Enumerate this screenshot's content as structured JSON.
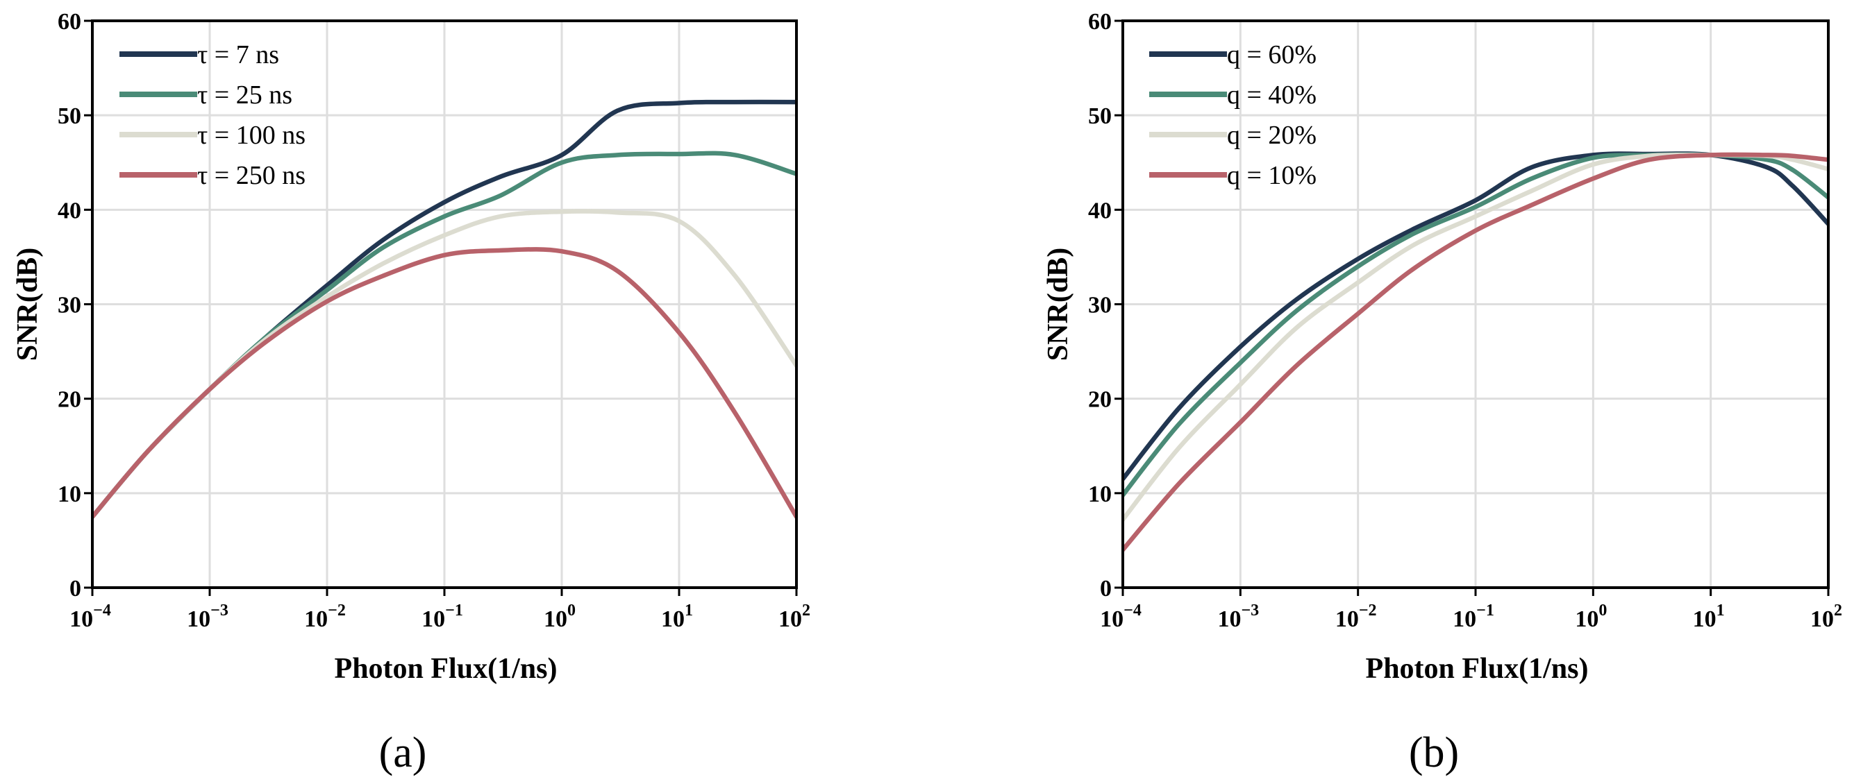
{
  "colors": {
    "navy": "#213651",
    "teal": "#4a8b77",
    "beige": "#dcdcd0",
    "red": "#b8626a"
  },
  "chart_data": [
    {
      "id": "a",
      "type": "line",
      "caption": "(a)",
      "xlabel": "Photon Flux(1/ns)",
      "ylabel": "SNR(dB)",
      "xscale": "log",
      "xlim": [
        0.0001,
        100
      ],
      "ylim": [
        0,
        60
      ],
      "grid": true,
      "legend": "top-left",
      "x_ticks": [
        {
          "base": "10",
          "exp": "−4"
        },
        {
          "base": "10",
          "exp": "−3"
        },
        {
          "base": "10",
          "exp": "−2"
        },
        {
          "base": "10",
          "exp": "−1"
        },
        {
          "base": "10",
          "exp": "0"
        },
        {
          "base": "10",
          "exp": "1"
        },
        {
          "base": "10",
          "exp": "2"
        }
      ],
      "y_ticks": [
        "0",
        "10",
        "20",
        "30",
        "40",
        "50",
        "60"
      ],
      "x": [
        0.0001,
        0.0003,
        0.001,
        0.003,
        0.01,
        0.03,
        0.1,
        0.3,
        1,
        3,
        10,
        30,
        100
      ],
      "series": [
        {
          "name": "τ = 7 ns",
          "color": "#213651",
          "values": [
            7.5,
            14.5,
            21.0,
            26.5,
            32.0,
            36.8,
            40.8,
            43.5,
            45.8,
            50.5,
            51.3,
            51.4,
            51.4
          ]
        },
        {
          "name": "τ = 25 ns",
          "color": "#4a8b77",
          "values": [
            7.5,
            14.5,
            21.0,
            26.5,
            31.5,
            36.0,
            39.3,
            41.5,
            45.0,
            45.8,
            45.9,
            45.8,
            43.8
          ]
        },
        {
          "name": "τ = 100 ns",
          "color": "#dcdcd0",
          "values": [
            7.5,
            14.5,
            21.0,
            26.3,
            30.8,
            34.3,
            37.3,
            39.3,
            39.8,
            39.7,
            38.8,
            33.0,
            23.5
          ]
        },
        {
          "name": "τ = 250 ns",
          "color": "#b8626a",
          "values": [
            7.5,
            14.5,
            21.0,
            26.0,
            30.3,
            33.0,
            35.2,
            35.7,
            35.6,
            33.5,
            27.0,
            18.5,
            7.5
          ]
        }
      ]
    },
    {
      "id": "b",
      "type": "line",
      "caption": "(b)",
      "xlabel": "Photon Flux(1/ns)",
      "ylabel": "SNR(dB)",
      "xscale": "log",
      "xlim": [
        0.0001,
        100
      ],
      "ylim": [
        0,
        60
      ],
      "grid": true,
      "legend": "top-left",
      "x_ticks": [
        {
          "base": "10",
          "exp": "−4"
        },
        {
          "base": "10",
          "exp": "−3"
        },
        {
          "base": "10",
          "exp": "−2"
        },
        {
          "base": "10",
          "exp": "−1"
        },
        {
          "base": "10",
          "exp": "0"
        },
        {
          "base": "10",
          "exp": "1"
        },
        {
          "base": "10",
          "exp": "2"
        }
      ],
      "y_ticks": [
        "0",
        "10",
        "20",
        "30",
        "40",
        "50",
        "60"
      ],
      "x": [
        0.0001,
        0.0003,
        0.001,
        0.003,
        0.01,
        0.03,
        0.1,
        0.3,
        1,
        3,
        10,
        30,
        50,
        100
      ],
      "series": [
        {
          "name": "q = 60%",
          "color": "#213651",
          "values": [
            11.5,
            19.0,
            25.5,
            30.5,
            34.8,
            38.0,
            41.0,
            44.5,
            45.8,
            45.9,
            45.8,
            44.5,
            42.5,
            38.5
          ]
        },
        {
          "name": "q = 40%",
          "color": "#4a8b77",
          "values": [
            9.8,
            17.3,
            23.8,
            29.3,
            34.0,
            37.5,
            40.3,
            43.3,
            45.5,
            45.8,
            45.8,
            45.3,
            44.2,
            41.3
          ]
        },
        {
          "name": "q = 20%",
          "color": "#dcdcd0",
          "values": [
            7.2,
            14.8,
            21.5,
            27.5,
            32.3,
            36.3,
            39.3,
            42.0,
            44.8,
            45.7,
            45.8,
            45.7,
            45.3,
            44.3
          ]
        },
        {
          "name": "q = 10%",
          "color": "#b8626a",
          "values": [
            4.0,
            11.0,
            17.5,
            23.5,
            29.0,
            33.8,
            37.8,
            40.5,
            43.3,
            45.3,
            45.8,
            45.8,
            45.7,
            45.3
          ]
        }
      ]
    }
  ]
}
